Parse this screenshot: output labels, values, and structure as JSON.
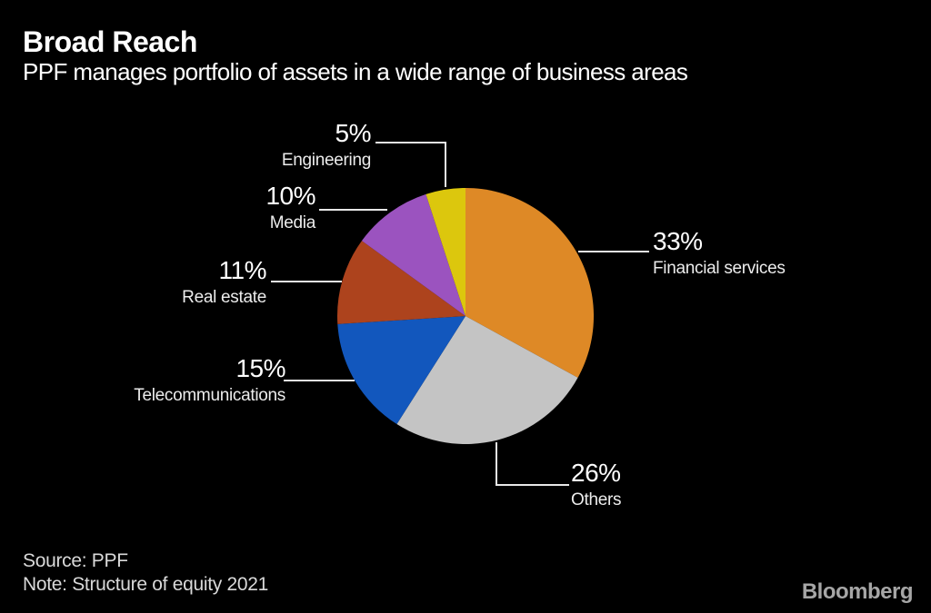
{
  "header": {
    "title": "Broad Reach",
    "subtitle": "PPF manages portfolio of assets in a wide range of business areas"
  },
  "chart_data": {
    "type": "pie",
    "title": "Broad Reach",
    "subtitle": "PPF manages portfolio of assets in a wide range of business areas",
    "unit": "%",
    "start_angle": "12 o'clock, clockwise",
    "background_color": "#000000",
    "callout_line_color": "#e8e8e8",
    "slices": [
      {
        "label": "Financial services",
        "value": 33,
        "pct_label": "33%",
        "color": "#de8926"
      },
      {
        "label": "Others",
        "value": 26,
        "pct_label": "26%",
        "color": "#c4c4c4"
      },
      {
        "label": "Telecommunications",
        "value": 15,
        "pct_label": "15%",
        "color": "#1257bd"
      },
      {
        "label": "Real estate",
        "value": 11,
        "pct_label": "11%",
        "color": "#ad431d"
      },
      {
        "label": "Media",
        "value": 10,
        "pct_label": "10%",
        "color": "#9b53bf"
      },
      {
        "label": "Engineering",
        "value": 5,
        "pct_label": "5%",
        "color": "#dcc70d"
      }
    ]
  },
  "footer": {
    "source": "Source: PPF",
    "note": "Note: Structure of equity 2021",
    "brand": "Bloomberg"
  }
}
